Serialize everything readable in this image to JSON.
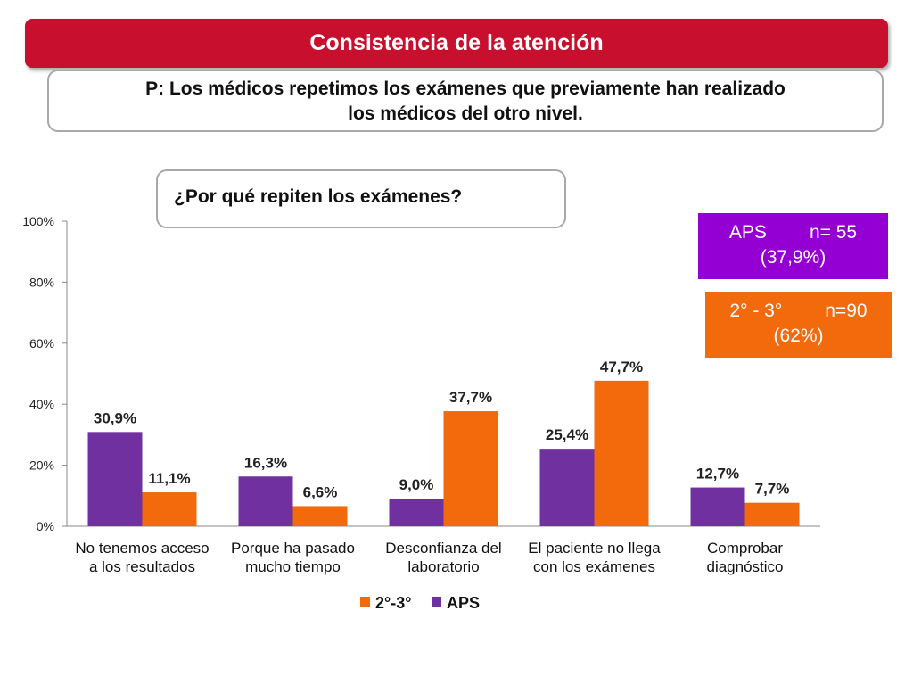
{
  "header": {
    "title": "Consistencia de la atención"
  },
  "question": {
    "line1": "P: Los médicos repetimos los exámenes que previamente han realizado",
    "line2": "los médicos del otro nivel."
  },
  "sub_question": "¿Por qué repiten los exámenes?",
  "badges": {
    "aps": {
      "name": "APS",
      "n": "n= 55",
      "pct": "(37,9%)",
      "color": "#9400d3"
    },
    "secondary": {
      "name": "2° - 3°",
      "n": "n=90",
      "pct": "(62%)",
      "color": "#f26a0c"
    }
  },
  "chart_data": {
    "type": "bar",
    "categories": [
      [
        "No tenemos acceso",
        "a los resultados"
      ],
      [
        "Porque ha pasado",
        "mucho tiempo"
      ],
      [
        "Desconfianza del",
        "laboratorio"
      ],
      [
        "El paciente no llega",
        "con los exámenes"
      ],
      [
        "Comprobar",
        "diagnóstico"
      ]
    ],
    "series": [
      {
        "name": "APS",
        "color": "#7030a0",
        "values": [
          30.9,
          16.3,
          9.0,
          25.4,
          12.7
        ],
        "labels": [
          "30,9%",
          "16,3%",
          "9,0%",
          "25,4%",
          "12,7%"
        ]
      },
      {
        "name": "2°-3°",
        "color": "#f26a0c",
        "values": [
          11.1,
          6.6,
          37.7,
          47.7,
          7.7
        ],
        "labels": [
          "11,1%",
          "6,6%",
          "37,7%",
          "47,7%",
          "7,7%"
        ]
      }
    ],
    "legend_order": [
      "2°-3°",
      "APS"
    ],
    "legend_position": "bottom",
    "yticks": [
      "0%",
      "20%",
      "40%",
      "60%",
      "80%",
      "100%"
    ],
    "ylim": [
      0,
      100
    ],
    "grid": false
  }
}
